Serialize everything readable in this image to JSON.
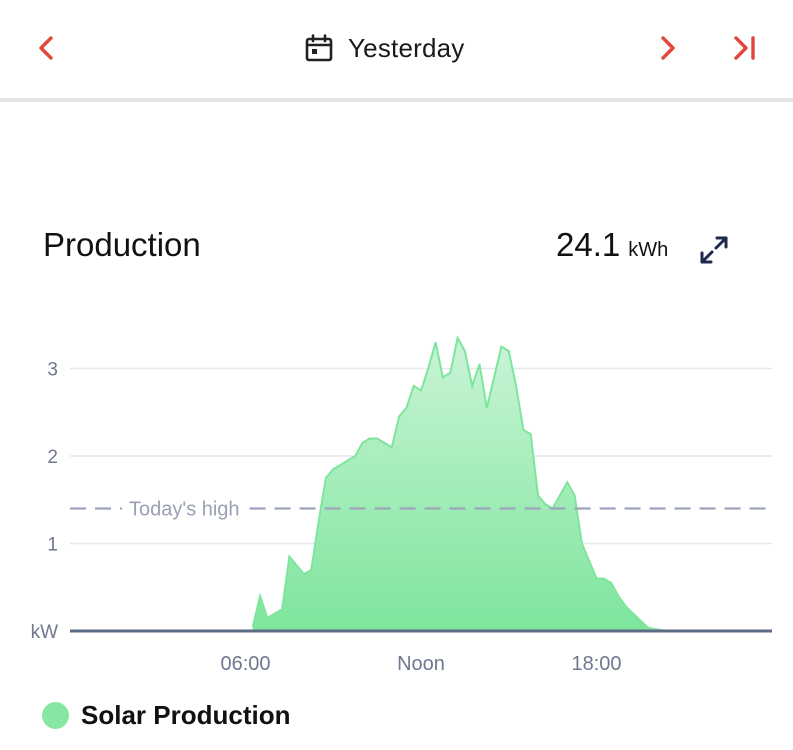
{
  "header": {
    "date_label": "Yesterday",
    "accent_color": "#e0463c"
  },
  "card": {
    "title": "Production",
    "total_value": "24.1",
    "total_unit": "kWh"
  },
  "chart_data": {
    "type": "area",
    "title": "Production",
    "xlabel": "",
    "ylabel": "kW",
    "xlim": [
      "00:00",
      "24:00"
    ],
    "ylim": [
      0,
      3.5
    ],
    "x_ticks": [
      "06:00",
      "Noon",
      "18:00"
    ],
    "y_ticks": [
      "kW",
      "1",
      "2",
      "3"
    ],
    "grid": true,
    "reference_line": {
      "label": "Today's high",
      "value": 1.4
    },
    "series": [
      {
        "name": "Solar Production",
        "color": "#86e7a2",
        "x": [
          "06:15",
          "06:30",
          "06:45",
          "07:00",
          "07:15",
          "07:30",
          "07:45",
          "08:00",
          "08:15",
          "08:30",
          "08:45",
          "09:00",
          "09:15",
          "09:30",
          "09:45",
          "10:00",
          "10:15",
          "10:30",
          "10:45",
          "11:00",
          "11:15",
          "11:30",
          "11:45",
          "12:00",
          "12:15",
          "12:30",
          "12:45",
          "13:00",
          "13:15",
          "13:30",
          "13:45",
          "14:00",
          "14:15",
          "14:30",
          "14:45",
          "15:00",
          "15:15",
          "15:30",
          "15:45",
          "16:00",
          "16:15",
          "16:30",
          "16:45",
          "17:00",
          "17:15",
          "17:30",
          "17:45",
          "18:00",
          "18:15",
          "18:30",
          "18:45",
          "19:00",
          "19:15",
          "19:30",
          "19:45",
          "20:00",
          "20:15",
          "20:30"
        ],
        "values": [
          0.05,
          0.4,
          0.15,
          0.2,
          0.25,
          0.85,
          0.75,
          0.65,
          0.7,
          1.25,
          1.75,
          1.85,
          1.9,
          1.95,
          2.0,
          2.15,
          2.2,
          2.2,
          2.15,
          2.1,
          2.45,
          2.55,
          2.8,
          2.75,
          3.0,
          3.3,
          2.9,
          2.95,
          3.35,
          3.2,
          2.8,
          3.05,
          2.55,
          2.9,
          3.25,
          3.2,
          2.8,
          2.3,
          2.25,
          1.55,
          1.45,
          1.4,
          1.55,
          1.7,
          1.55,
          1.0,
          0.8,
          0.6,
          0.6,
          0.55,
          0.4,
          0.28,
          0.2,
          0.12,
          0.04,
          0.02,
          0.01,
          0.0
        ]
      }
    ]
  },
  "legend": {
    "label": "Solar Production"
  }
}
